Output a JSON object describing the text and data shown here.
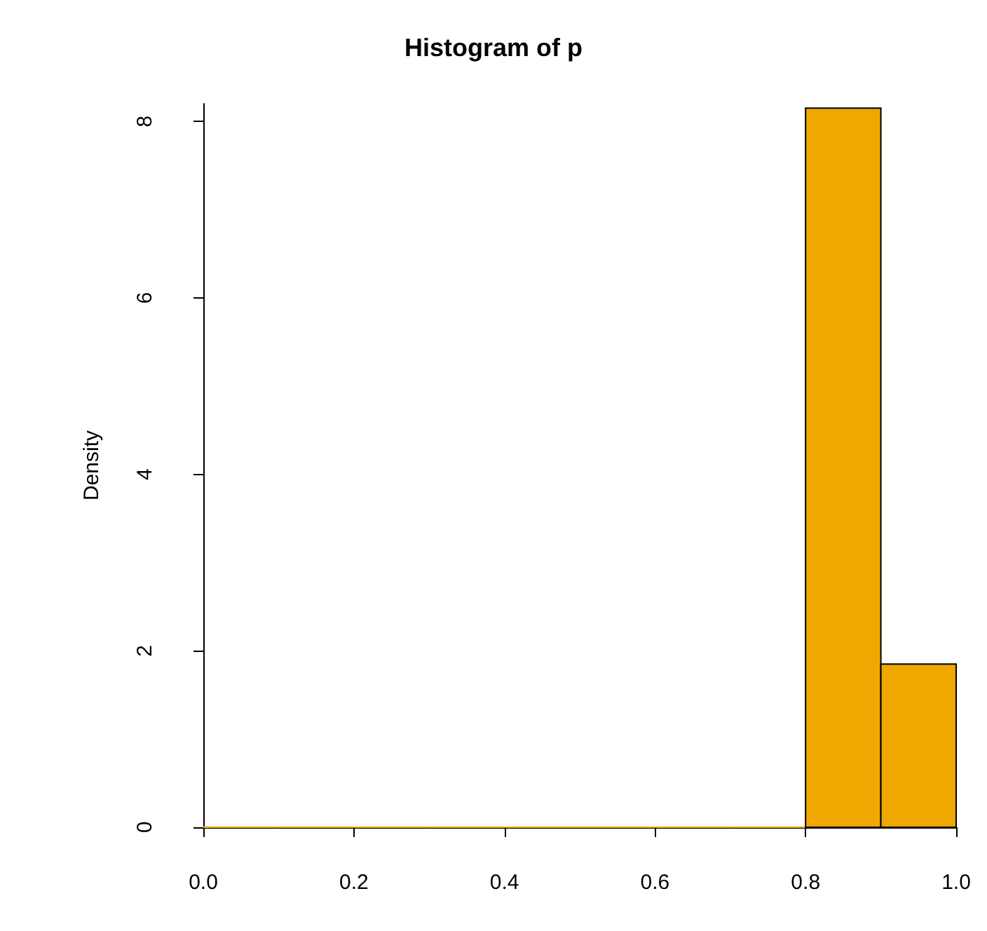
{
  "chart_data": {
    "type": "histogram",
    "title": "Histogram of p",
    "ylabel": "Density",
    "bins": [
      0,
      0.1,
      0.2,
      0.3,
      0.4,
      0.5,
      0.6,
      0.7,
      0.8,
      0.9,
      1.0
    ],
    "values": [
      0,
      0,
      0,
      0,
      0,
      0,
      0,
      0,
      8.15,
      1.85
    ],
    "color": "#f0a800",
    "xlim": [
      0,
      1
    ],
    "xticks": [
      {
        "value": 0,
        "label": "0.0"
      },
      {
        "value": 0.2,
        "label": "0.2"
      },
      {
        "value": 0.4,
        "label": "0.4"
      },
      {
        "value": 0.6,
        "label": "0.6"
      },
      {
        "value": 0.8,
        "label": "0.8"
      },
      {
        "value": 1,
        "label": "1.0"
      }
    ],
    "ylim": [
      0,
      8.2
    ],
    "yticks": [
      0,
      2,
      4,
      6,
      8
    ],
    "grid": false
  }
}
